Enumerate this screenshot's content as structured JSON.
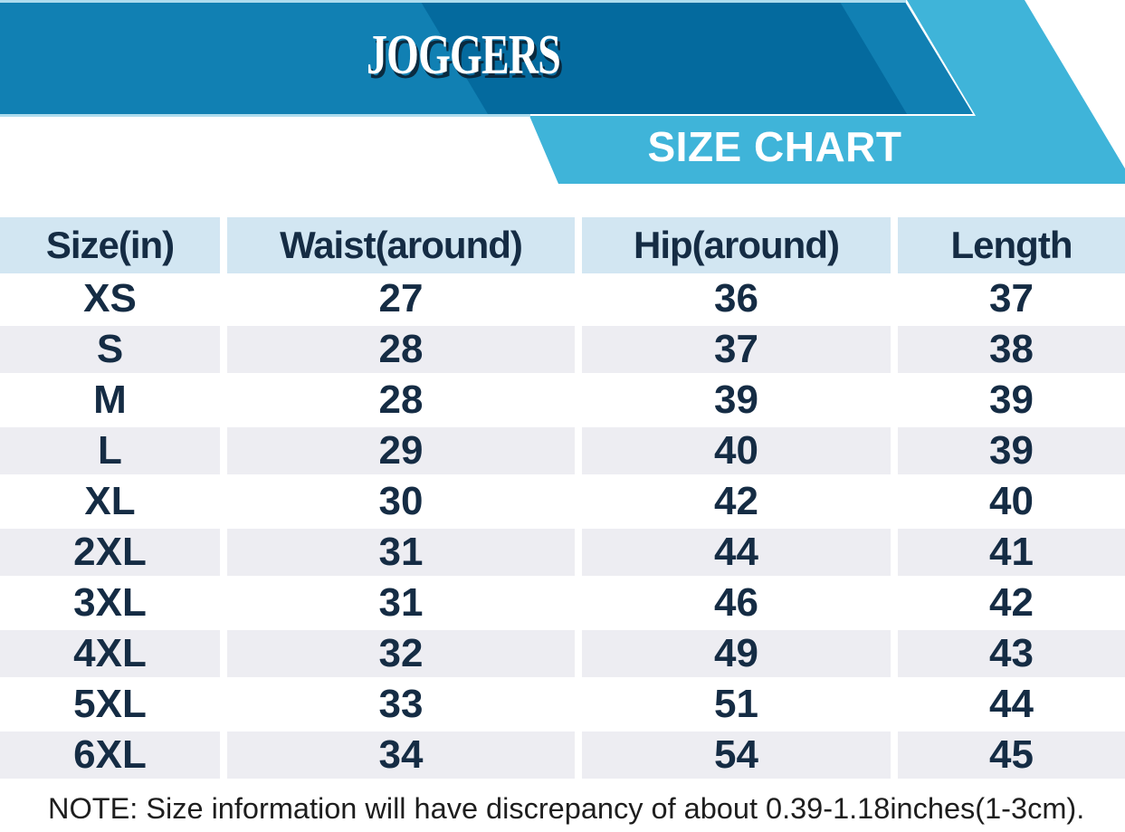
{
  "banner": {
    "product_title": "JOGGERS",
    "chart_title": "SIZE CHART",
    "colors": {
      "medium_blue": "#1180b3",
      "dark_blue": "#046a9e",
      "cyan": "#3fb4d9",
      "pale_line": "#aedcee"
    }
  },
  "table": {
    "headers": [
      "Size(in)",
      "Waist(around)",
      "Hip(around)",
      "Length"
    ],
    "rows": [
      [
        "XS",
        "27",
        "36",
        "37"
      ],
      [
        "S",
        "28",
        "37",
        "38"
      ],
      [
        "M",
        "28",
        "39",
        "39"
      ],
      [
        "L",
        "29",
        "40",
        "39"
      ],
      [
        "XL",
        "30",
        "42",
        "40"
      ],
      [
        "2XL",
        "31",
        "44",
        "41"
      ],
      [
        "3XL",
        "31",
        "46",
        "42"
      ],
      [
        "4XL",
        "32",
        "49",
        "43"
      ],
      [
        "5XL",
        "33",
        "51",
        "44"
      ],
      [
        "6XL",
        "34",
        "54",
        "45"
      ]
    ],
    "colors": {
      "header_bg": "#d2e6f2",
      "alt_row_bg": "#ededf2",
      "cell_text": "#152c44",
      "note_text": "#1e1e1e"
    }
  },
  "note": "NOTE: Size information will have discrepancy of about 0.39-1.18inches(1-3cm).",
  "chart_data": {
    "type": "table",
    "title": "JOGGERS",
    "subtitle": "SIZE CHART",
    "columns": [
      "Size(in)",
      "Waist(around)",
      "Hip(around)",
      "Length"
    ],
    "rows": [
      [
        "XS",
        27,
        36,
        37
      ],
      [
        "S",
        28,
        37,
        38
      ],
      [
        "M",
        28,
        39,
        39
      ],
      [
        "L",
        29,
        40,
        39
      ],
      [
        "XL",
        30,
        42,
        40
      ],
      [
        "2XL",
        31,
        44,
        41
      ],
      [
        "3XL",
        31,
        46,
        42
      ],
      [
        "4XL",
        32,
        49,
        43
      ],
      [
        "5XL",
        33,
        51,
        44
      ],
      [
        "6XL",
        34,
        54,
        45
      ]
    ],
    "note": "NOTE: Size information will have discrepancy of about 0.39-1.18inches(1-3cm).",
    "units": "inches",
    "layout": {
      "striped": true,
      "stripe_order": "white-first",
      "header_position": "top"
    }
  }
}
